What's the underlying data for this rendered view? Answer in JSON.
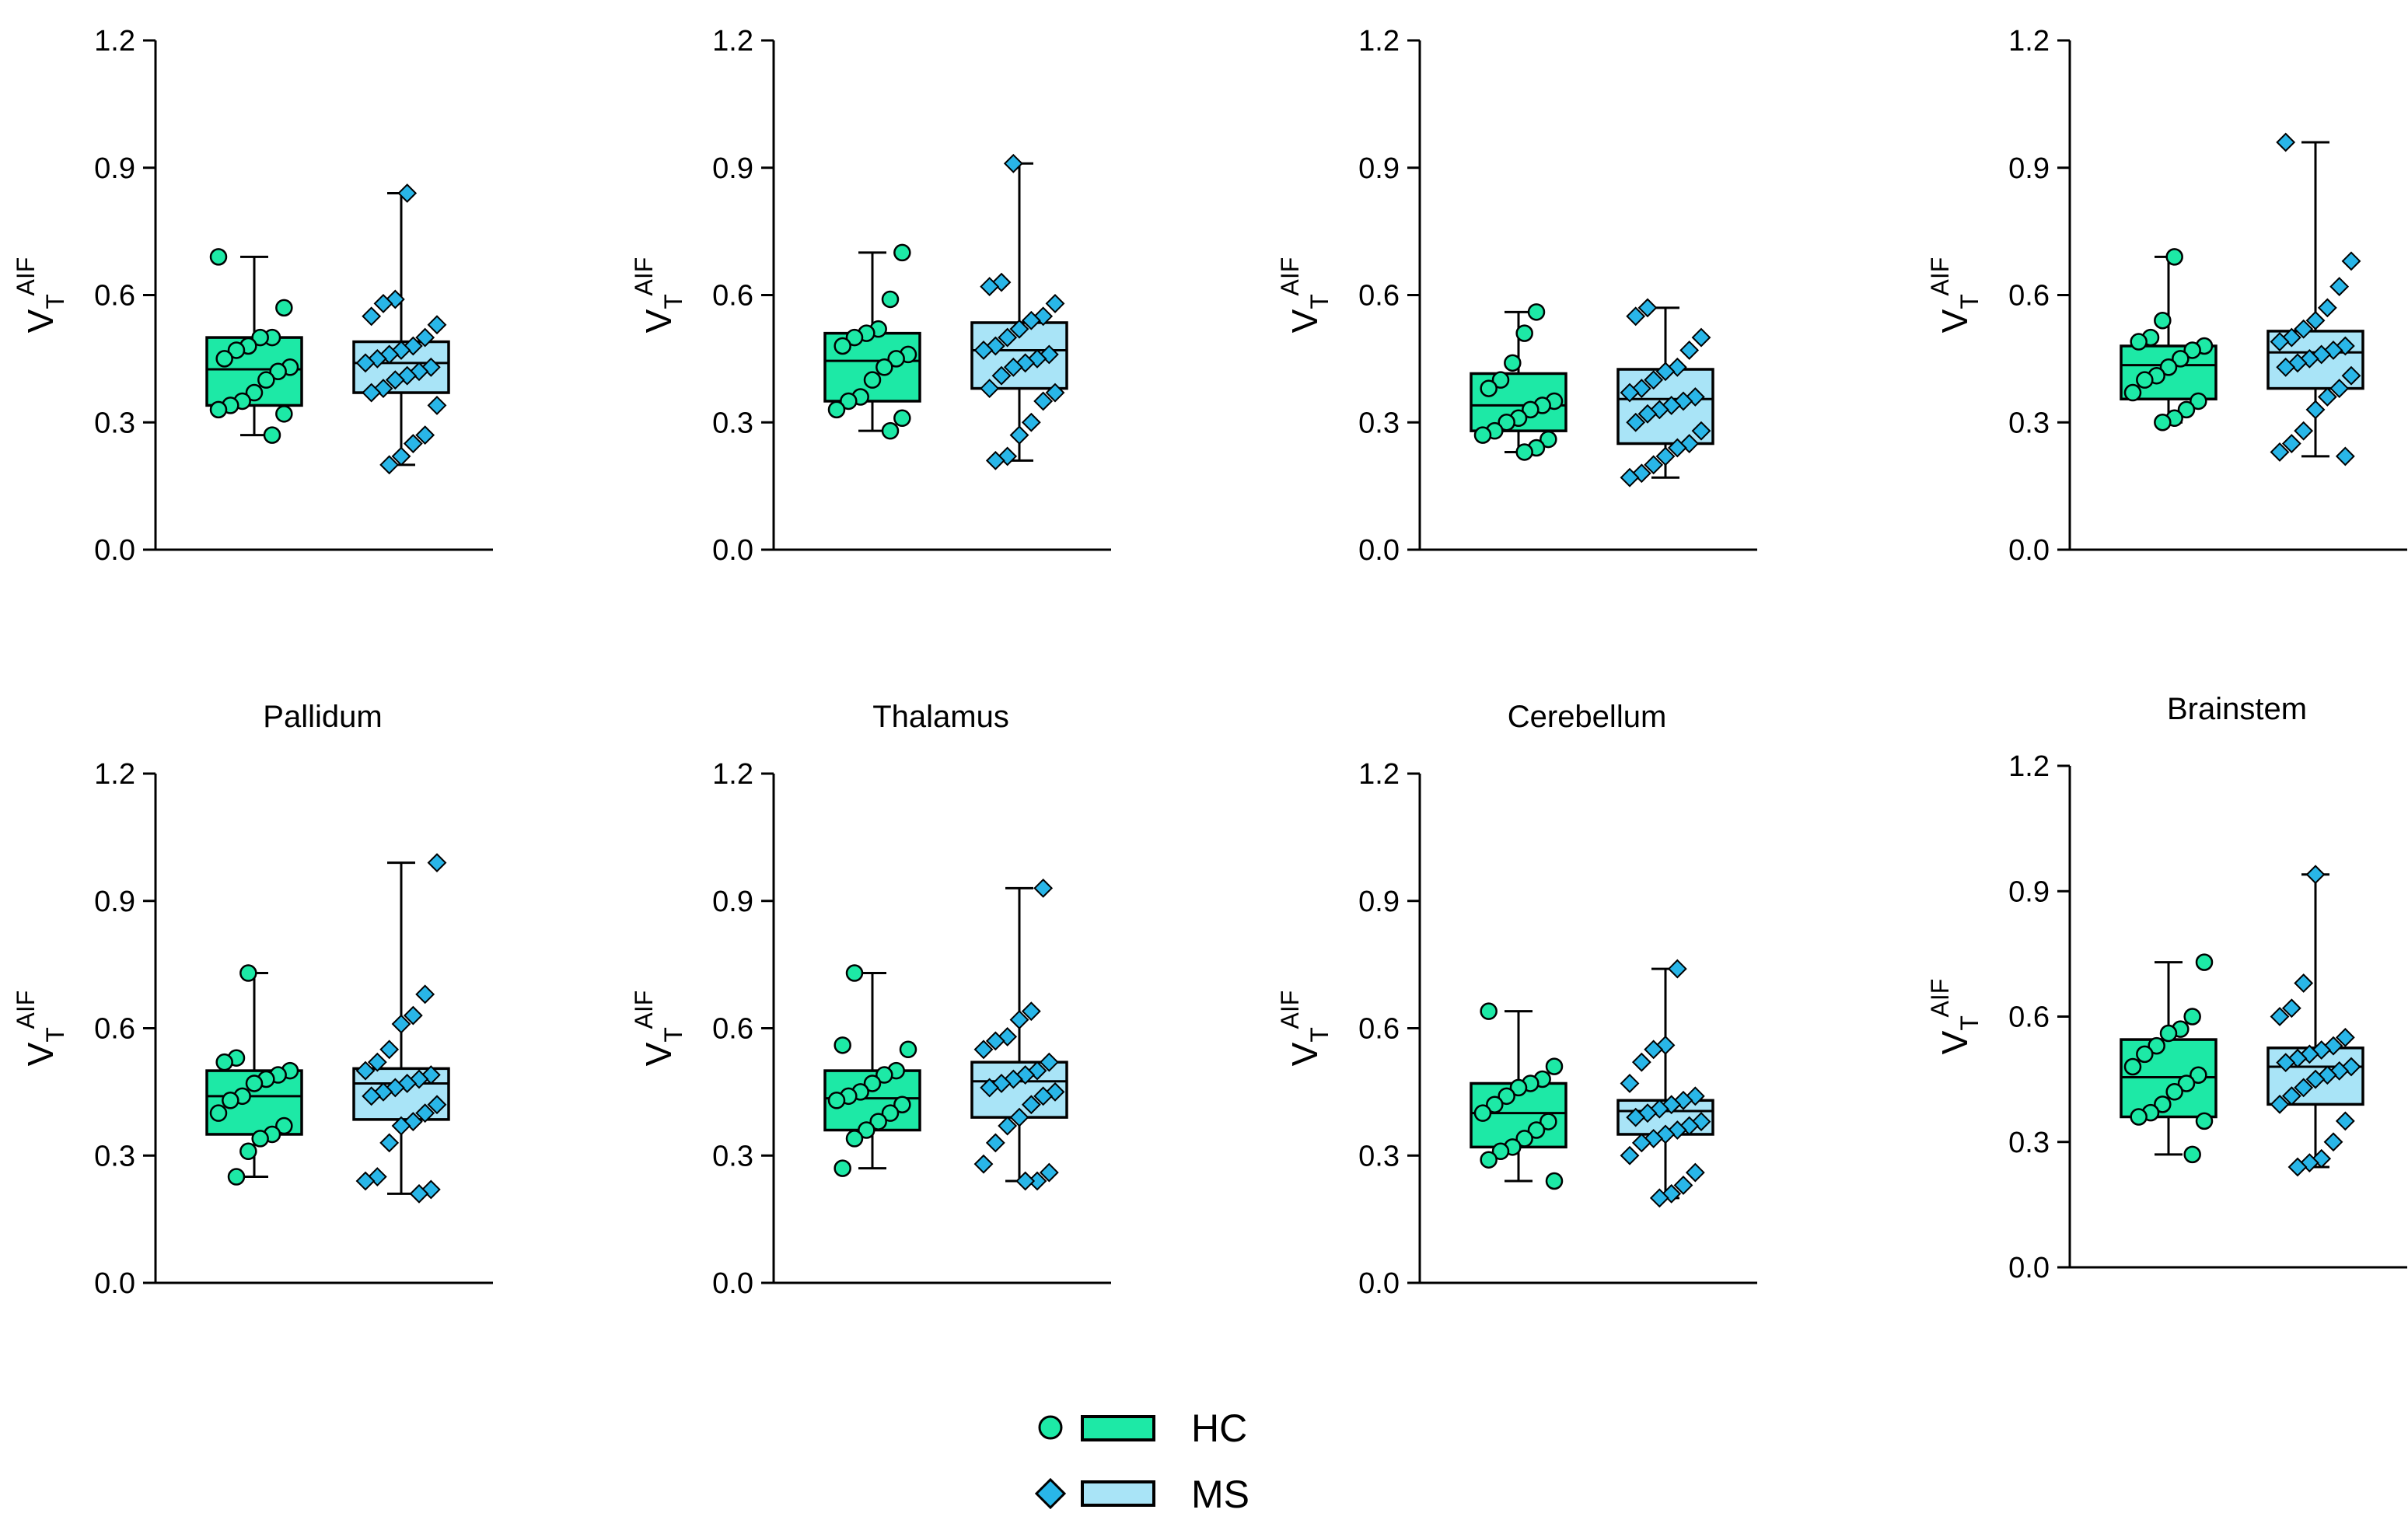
{
  "chart_data": [
    {
      "type": "box",
      "title": "",
      "ylabel_main": "V",
      "ylabel_sub": "T",
      "ylabel_sup": "AIF",
      "ylim": [
        0,
        1.2
      ],
      "yticks": [
        "0.0",
        "0.3",
        "0.6",
        "0.9",
        "1.2"
      ],
      "series": [
        {
          "name": "HC",
          "box": {
            "min": 0.27,
            "q1": 0.34,
            "median": 0.425,
            "q3": 0.5,
            "max": 0.69
          },
          "points": [
            0.69,
            0.57,
            0.5,
            0.5,
            0.48,
            0.47,
            0.45,
            0.43,
            0.42,
            0.4,
            0.37,
            0.35,
            0.34,
            0.33,
            0.32,
            0.27
          ]
        },
        {
          "name": "MS",
          "box": {
            "min": 0.2,
            "q1": 0.37,
            "median": 0.44,
            "q3": 0.49,
            "max": 0.84
          },
          "points": [
            0.84,
            0.59,
            0.58,
            0.55,
            0.53,
            0.5,
            0.48,
            0.47,
            0.46,
            0.45,
            0.44,
            0.43,
            0.42,
            0.41,
            0.4,
            0.38,
            0.37,
            0.34,
            0.27,
            0.25,
            0.22,
            0.2
          ]
        }
      ]
    },
    {
      "type": "box",
      "title": "",
      "ylabel_main": "V",
      "ylabel_sub": "T",
      "ylabel_sup": "AIF",
      "ylim": [
        0,
        1.2
      ],
      "yticks": [
        "0.0",
        "0.3",
        "0.6",
        "0.9",
        "1.2"
      ],
      "series": [
        {
          "name": "HC",
          "box": {
            "min": 0.28,
            "q1": 0.35,
            "median": 0.445,
            "q3": 0.51,
            "max": 0.7
          },
          "points": [
            0.7,
            0.59,
            0.52,
            0.51,
            0.5,
            0.48,
            0.46,
            0.45,
            0.43,
            0.4,
            0.36,
            0.35,
            0.33,
            0.31,
            0.28
          ]
        },
        {
          "name": "MS",
          "box": {
            "min": 0.21,
            "q1": 0.38,
            "median": 0.47,
            "q3": 0.535,
            "max": 0.91
          },
          "points": [
            0.91,
            0.63,
            0.62,
            0.58,
            0.55,
            0.54,
            0.52,
            0.5,
            0.48,
            0.47,
            0.46,
            0.45,
            0.44,
            0.43,
            0.41,
            0.38,
            0.37,
            0.35,
            0.3,
            0.27,
            0.22,
            0.21
          ]
        }
      ]
    },
    {
      "type": "box",
      "title": "",
      "ylabel_main": "V",
      "ylabel_sub": "T",
      "ylabel_sup": "AIF",
      "ylim": [
        0,
        1.2
      ],
      "yticks": [
        "0.0",
        "0.3",
        "0.6",
        "0.9",
        "1.2"
      ],
      "series": [
        {
          "name": "HC",
          "box": {
            "min": 0.23,
            "q1": 0.28,
            "median": 0.34,
            "q3": 0.415,
            "max": 0.56
          },
          "points": [
            0.56,
            0.51,
            0.44,
            0.4,
            0.38,
            0.35,
            0.34,
            0.33,
            0.31,
            0.3,
            0.28,
            0.27,
            0.26,
            0.24,
            0.23
          ]
        },
        {
          "name": "MS",
          "box": {
            "min": 0.17,
            "q1": 0.25,
            "median": 0.355,
            "q3": 0.425,
            "max": 0.57
          },
          "points": [
            0.57,
            0.55,
            0.5,
            0.47,
            0.43,
            0.42,
            0.4,
            0.38,
            0.37,
            0.36,
            0.35,
            0.34,
            0.33,
            0.32,
            0.3,
            0.28,
            0.25,
            0.24,
            0.22,
            0.2,
            0.18,
            0.17
          ]
        }
      ]
    },
    {
      "type": "box",
      "title": "",
      "ylabel_main": "V",
      "ylabel_sub": "T",
      "ylabel_sup": "AIF",
      "ylim": [
        0,
        1.2
      ],
      "yticks": [
        "0.0",
        "0.3",
        "0.6",
        "0.9",
        "1.2"
      ],
      "series": [
        {
          "name": "HC",
          "box": {
            "min": 0.3,
            "q1": 0.355,
            "median": 0.435,
            "q3": 0.48,
            "max": 0.69
          },
          "points": [
            0.69,
            0.54,
            0.5,
            0.49,
            0.48,
            0.47,
            0.45,
            0.43,
            0.41,
            0.4,
            0.37,
            0.35,
            0.33,
            0.31,
            0.3
          ]
        },
        {
          "name": "MS",
          "box": {
            "min": 0.22,
            "q1": 0.38,
            "median": 0.465,
            "q3": 0.515,
            "max": 0.96
          },
          "points": [
            0.96,
            0.68,
            0.62,
            0.57,
            0.54,
            0.52,
            0.5,
            0.49,
            0.48,
            0.47,
            0.46,
            0.45,
            0.44,
            0.43,
            0.41,
            0.38,
            0.36,
            0.33,
            0.28,
            0.25,
            0.23,
            0.22
          ]
        }
      ]
    },
    {
      "type": "box",
      "title": "Pallidum",
      "ylabel_main": "V",
      "ylabel_sub": "T",
      "ylabel_sup": "AIF",
      "ylim": [
        0,
        1.2
      ],
      "yticks": [
        "0.0",
        "0.3",
        "0.6",
        "0.9",
        "1.2"
      ],
      "series": [
        {
          "name": "HC",
          "box": {
            "min": 0.25,
            "q1": 0.35,
            "median": 0.44,
            "q3": 0.5,
            "max": 0.73
          },
          "points": [
            0.73,
            0.53,
            0.52,
            0.5,
            0.49,
            0.48,
            0.47,
            0.44,
            0.43,
            0.4,
            0.37,
            0.35,
            0.34,
            0.31,
            0.25
          ]
        },
        {
          "name": "MS",
          "box": {
            "min": 0.21,
            "q1": 0.385,
            "median": 0.47,
            "q3": 0.505,
            "max": 0.99
          },
          "points": [
            0.99,
            0.68,
            0.63,
            0.61,
            0.55,
            0.52,
            0.5,
            0.49,
            0.48,
            0.47,
            0.46,
            0.45,
            0.44,
            0.42,
            0.4,
            0.38,
            0.37,
            0.33,
            0.25,
            0.24,
            0.22,
            0.21
          ]
        }
      ]
    },
    {
      "type": "box",
      "title": "Thalamus",
      "ylabel_main": "V",
      "ylabel_sub": "T",
      "ylabel_sup": "AIF",
      "ylim": [
        0,
        1.2
      ],
      "yticks": [
        "0.0",
        "0.3",
        "0.6",
        "0.9",
        "1.2"
      ],
      "series": [
        {
          "name": "HC",
          "box": {
            "min": 0.27,
            "q1": 0.36,
            "median": 0.435,
            "q3": 0.5,
            "max": 0.73
          },
          "points": [
            0.73,
            0.56,
            0.55,
            0.5,
            0.49,
            0.47,
            0.45,
            0.44,
            0.43,
            0.42,
            0.4,
            0.38,
            0.36,
            0.34,
            0.27
          ]
        },
        {
          "name": "MS",
          "box": {
            "min": 0.24,
            "q1": 0.39,
            "median": 0.475,
            "q3": 0.52,
            "max": 0.93
          },
          "points": [
            0.93,
            0.64,
            0.62,
            0.58,
            0.57,
            0.55,
            0.52,
            0.5,
            0.49,
            0.48,
            0.47,
            0.46,
            0.45,
            0.44,
            0.42,
            0.39,
            0.37,
            0.33,
            0.28,
            0.26,
            0.24,
            0.24
          ]
        }
      ]
    },
    {
      "type": "box",
      "title": "Cerebellum",
      "ylabel_main": "V",
      "ylabel_sub": "T",
      "ylabel_sup": "AIF",
      "ylim": [
        0,
        1.2
      ],
      "yticks": [
        "0.0",
        "0.3",
        "0.6",
        "0.9",
        "1.2"
      ],
      "series": [
        {
          "name": "HC",
          "box": {
            "min": 0.24,
            "q1": 0.32,
            "median": 0.4,
            "q3": 0.47,
            "max": 0.64
          },
          "points": [
            0.64,
            0.51,
            0.48,
            0.47,
            0.46,
            0.44,
            0.42,
            0.4,
            0.38,
            0.36,
            0.34,
            0.32,
            0.31,
            0.29,
            0.24
          ]
        },
        {
          "name": "MS",
          "box": {
            "min": 0.2,
            "q1": 0.35,
            "median": 0.405,
            "q3": 0.43,
            "max": 0.74
          },
          "points": [
            0.74,
            0.56,
            0.55,
            0.52,
            0.47,
            0.44,
            0.43,
            0.42,
            0.41,
            0.4,
            0.39,
            0.38,
            0.37,
            0.36,
            0.35,
            0.34,
            0.33,
            0.3,
            0.26,
            0.23,
            0.21,
            0.2
          ]
        }
      ]
    },
    {
      "type": "box",
      "title": "Brainstem",
      "ylabel_main": "V",
      "ylabel_sub": "T",
      "ylabel_sup": "AIF",
      "ylim": [
        0,
        1.2
      ],
      "yticks": [
        "0.0",
        "0.3",
        "0.6",
        "0.9",
        "1.2"
      ],
      "series": [
        {
          "name": "HC",
          "box": {
            "min": 0.27,
            "q1": 0.36,
            "median": 0.455,
            "q3": 0.545,
            "max": 0.73
          },
          "points": [
            0.73,
            0.6,
            0.57,
            0.56,
            0.53,
            0.51,
            0.48,
            0.46,
            0.44,
            0.42,
            0.39,
            0.37,
            0.36,
            0.35,
            0.27
          ]
        },
        {
          "name": "MS",
          "box": {
            "min": 0.24,
            "q1": 0.39,
            "median": 0.48,
            "q3": 0.525,
            "max": 0.94
          },
          "points": [
            0.94,
            0.68,
            0.62,
            0.6,
            0.55,
            0.53,
            0.52,
            0.51,
            0.5,
            0.49,
            0.48,
            0.47,
            0.46,
            0.45,
            0.43,
            0.41,
            0.39,
            0.35,
            0.3,
            0.26,
            0.25,
            0.24
          ]
        }
      ]
    }
  ],
  "legend": {
    "items": [
      {
        "name": "HC",
        "marker": "circle",
        "color": "#1de9a6"
      },
      {
        "name": "MS",
        "marker": "diamond",
        "color": "#29b6e8"
      }
    ]
  },
  "colors": {
    "hc_fill": "#1de9a6",
    "ms_fill": "#a9e4f7",
    "ms_point": "#29b6e8",
    "stroke": "#000000"
  }
}
